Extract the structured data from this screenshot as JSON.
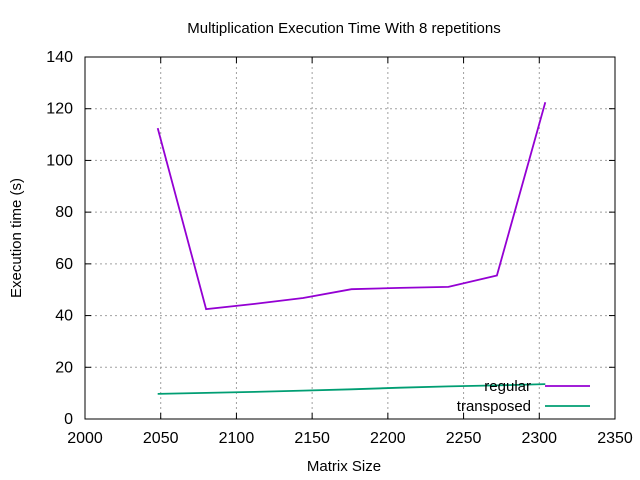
{
  "chart_data": {
    "type": "line",
    "title": "Multiplication Execution Time With 8 repetitions",
    "xlabel": "Matrix Size",
    "ylabel": "Execution time (s)",
    "xlim": [
      2000,
      2350
    ],
    "ylim": [
      0,
      140
    ],
    "xticks": [
      2000,
      2050,
      2100,
      2150,
      2200,
      2250,
      2300,
      2350
    ],
    "yticks": [
      0,
      20,
      40,
      60,
      80,
      100,
      120,
      140
    ],
    "grid": true,
    "legend_position": "bottom-right",
    "series": [
      {
        "name": "regular",
        "color": "#9400d3",
        "x": [
          2048,
          2080,
          2112,
          2144,
          2176,
          2208,
          2240,
          2272,
          2304
        ],
        "y": [
          112.5,
          42.5,
          44.5,
          46.8,
          50.2,
          50.7,
          51.1,
          55.5,
          122.5
        ]
      },
      {
        "name": "transposed",
        "color": "#009e73",
        "x": [
          2048,
          2080,
          2112,
          2144,
          2176,
          2208,
          2240,
          2272,
          2304
        ],
        "y": [
          9.7,
          10.1,
          10.5,
          11.0,
          11.5,
          12.1,
          12.6,
          13.0,
          13.5
        ]
      }
    ]
  }
}
